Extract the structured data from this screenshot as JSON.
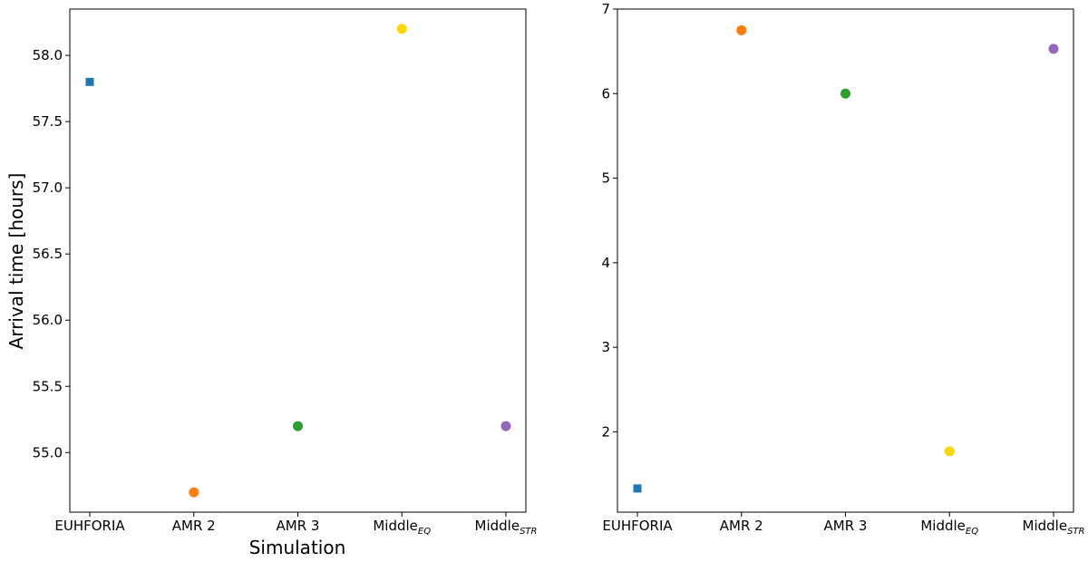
{
  "chart_data": [
    {
      "type": "scatter",
      "xlabel": "Simulation",
      "ylabel": "Arrival time [hours]",
      "categories": [
        {
          "base": "EUHFORIA",
          "sub": ""
        },
        {
          "base": "AMR 2",
          "sub": ""
        },
        {
          "base": "AMR 3",
          "sub": ""
        },
        {
          "base": "Middle",
          "sub": "EQ"
        },
        {
          "base": "Middle",
          "sub": "STR"
        }
      ],
      "values": [
        57.8,
        54.7,
        55.2,
        58.2,
        55.2
      ],
      "markers": [
        "square",
        "circle",
        "circle",
        "circle",
        "circle"
      ],
      "colors": [
        "#1f77b4",
        "#ff7f0e",
        "#2ca02c",
        "#ffd700",
        "#9467bd"
      ],
      "ylim": [
        54.55,
        58.35
      ],
      "yticks": [
        "55.0",
        "55.5",
        "56.0",
        "56.5",
        "57.0",
        "57.5",
        "58.0"
      ],
      "grid": false
    },
    {
      "type": "scatter",
      "xlabel": "",
      "ylabel": "",
      "categories": [
        {
          "base": "EUHFORIA",
          "sub": ""
        },
        {
          "base": "AMR 2",
          "sub": ""
        },
        {
          "base": "AMR 3",
          "sub": ""
        },
        {
          "base": "Middle",
          "sub": "EQ"
        },
        {
          "base": "Middle",
          "sub": "STR"
        }
      ],
      "values": [
        1.33,
        6.75,
        6.0,
        1.77,
        6.53
      ],
      "markers": [
        "square",
        "circle",
        "circle",
        "circle",
        "circle"
      ],
      "colors": [
        "#1f77b4",
        "#ff7f0e",
        "#2ca02c",
        "#ffd700",
        "#9467bd"
      ],
      "ylim": [
        1.05,
        7.0
      ],
      "yticks": [
        "2",
        "3",
        "4",
        "5",
        "6",
        "7"
      ],
      "grid": false
    }
  ]
}
